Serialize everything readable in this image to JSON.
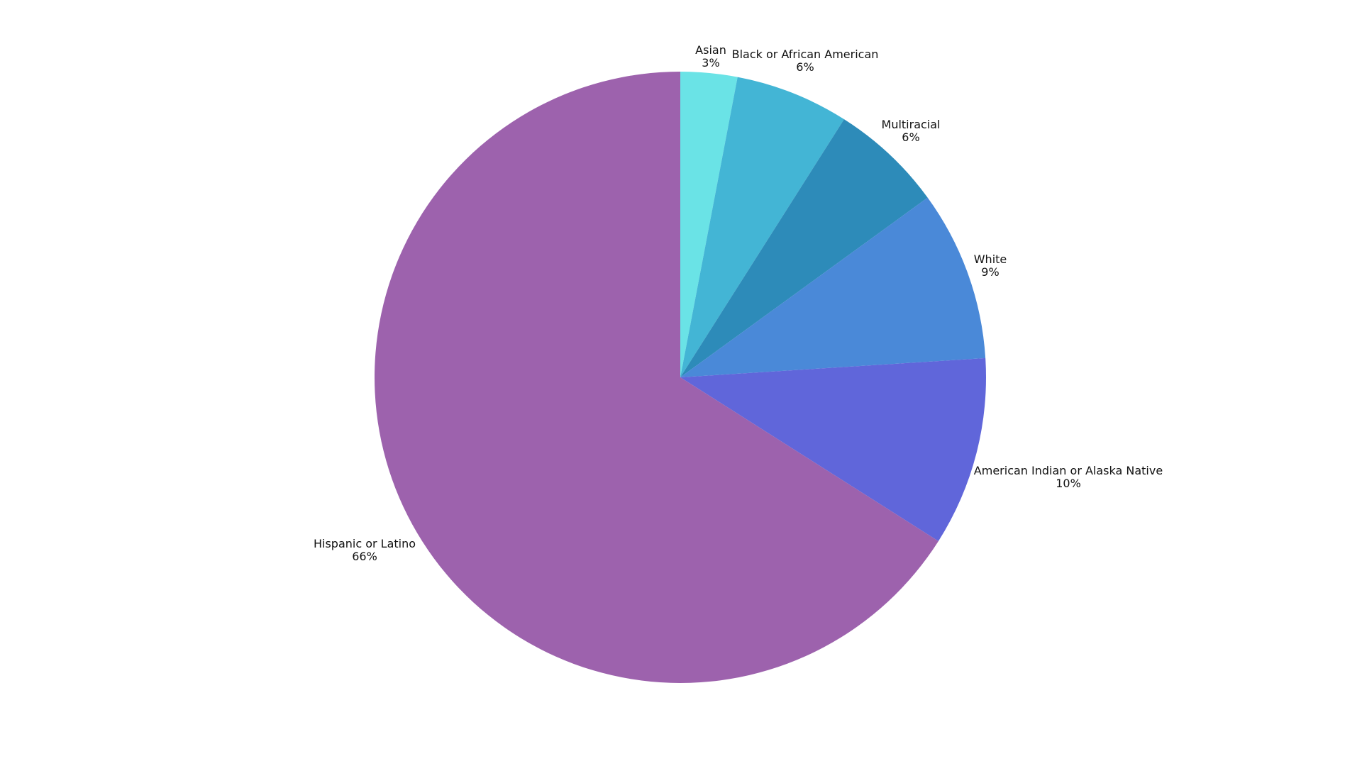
{
  "chart_data": {
    "type": "pie",
    "start_angle": "top, clockwise",
    "labels_position": "outside",
    "slices": [
      {
        "label": "Asian",
        "value": 3,
        "value_label": "3%",
        "color": "#6AE3E6"
      },
      {
        "label": "Black or African American",
        "value": 6,
        "value_label": "6%",
        "color": "#43B5D5"
      },
      {
        "label": "Multiracial",
        "value": 6,
        "value_label": "6%",
        "color": "#2D8BB9"
      },
      {
        "label": "White",
        "value": 9,
        "value_label": "9%",
        "color": "#4A89D8"
      },
      {
        "label": "American Indian or Alaska Native",
        "value": 10,
        "value_label": "10%",
        "color": "#6066DA"
      },
      {
        "label": "Hispanic or Latino",
        "value": 66,
        "value_label": "66%",
        "color": "#9D62AD"
      }
    ]
  }
}
